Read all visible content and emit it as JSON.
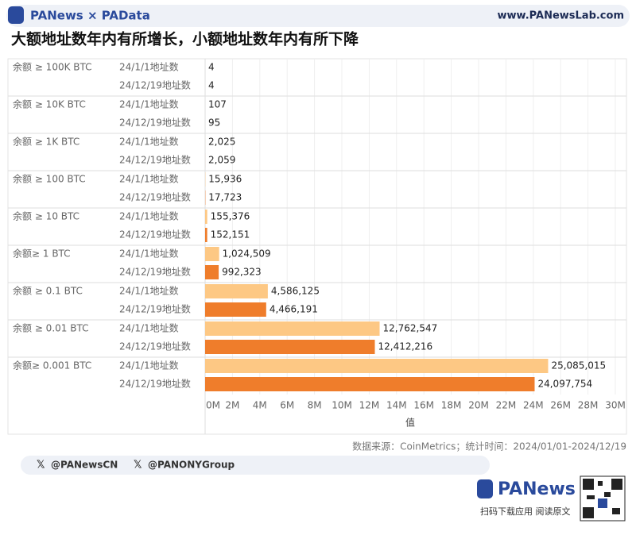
{
  "header": {
    "brand": "PANews × PAData",
    "url": "www.PANewsLab.com"
  },
  "chart_data": {
    "type": "bar",
    "orientation": "horizontal",
    "title": "大额地址数年内有所增长，小额地址数年内有所下降",
    "categories": [
      "余额 ≥ 100K BTC",
      "余额 ≥ 10K BTC",
      "余额 ≥ 1K BTC",
      "余额 ≥ 100 BTC",
      "余额 ≥ 10 BTC",
      "余额≥ 1 BTC",
      "余额 ≥ 0.1 BTC",
      "余额 ≥ 0.01 BTC",
      "余额≥ 0.001 BTC"
    ],
    "series": [
      {
        "name": "24/1/1地址数",
        "color": "#fdc884",
        "values": [
          4,
          107,
          2025,
          15936,
          155376,
          1024509,
          4586125,
          12762547,
          25085015
        ],
        "value_labels": [
          "4",
          "107",
          "2,025",
          "15,936",
          "155,376",
          "1,024,509",
          "4,586,125",
          "12,762,547",
          "25,085,015"
        ]
      },
      {
        "name": "24/12/19地址数",
        "color": "#ef7d2b",
        "values": [
          4,
          95,
          2059,
          17723,
          152151,
          992323,
          4466191,
          12412216,
          24097754
        ],
        "value_labels": [
          "4",
          "95",
          "2,059",
          "17,723",
          "152,151",
          "992,323",
          "4,466,191",
          "12,412,216",
          "24,097,754"
        ]
      }
    ],
    "xlabel": "值",
    "xlim": [
      0,
      30000000
    ],
    "xticks": [
      {
        "value": 0,
        "label": "0M"
      },
      {
        "value": 2000000,
        "label": "2M"
      },
      {
        "value": 4000000,
        "label": "4M"
      },
      {
        "value": 6000000,
        "label": "6M"
      },
      {
        "value": 8000000,
        "label": "8M"
      },
      {
        "value": 10000000,
        "label": "10M"
      },
      {
        "value": 12000000,
        "label": "12M"
      },
      {
        "value": 14000000,
        "label": "14M"
      },
      {
        "value": 16000000,
        "label": "16M"
      },
      {
        "value": 18000000,
        "label": "18M"
      },
      {
        "value": 20000000,
        "label": "20M"
      },
      {
        "value": 22000000,
        "label": "22M"
      },
      {
        "value": 24000000,
        "label": "24M"
      },
      {
        "value": 26000000,
        "label": "26M"
      },
      {
        "value": 28000000,
        "label": "28M"
      },
      {
        "value": 30000000,
        "label": "30M"
      }
    ],
    "grid": true,
    "source": "数据来源：CoinMetrics；统计时间：2024/01/01-2024/12/19"
  },
  "footer": {
    "social": [
      "@PANewsCN",
      "@PANONYGroup"
    ],
    "app_name": "PANews",
    "app_hint": "扫码下载应用  阅读原文"
  }
}
